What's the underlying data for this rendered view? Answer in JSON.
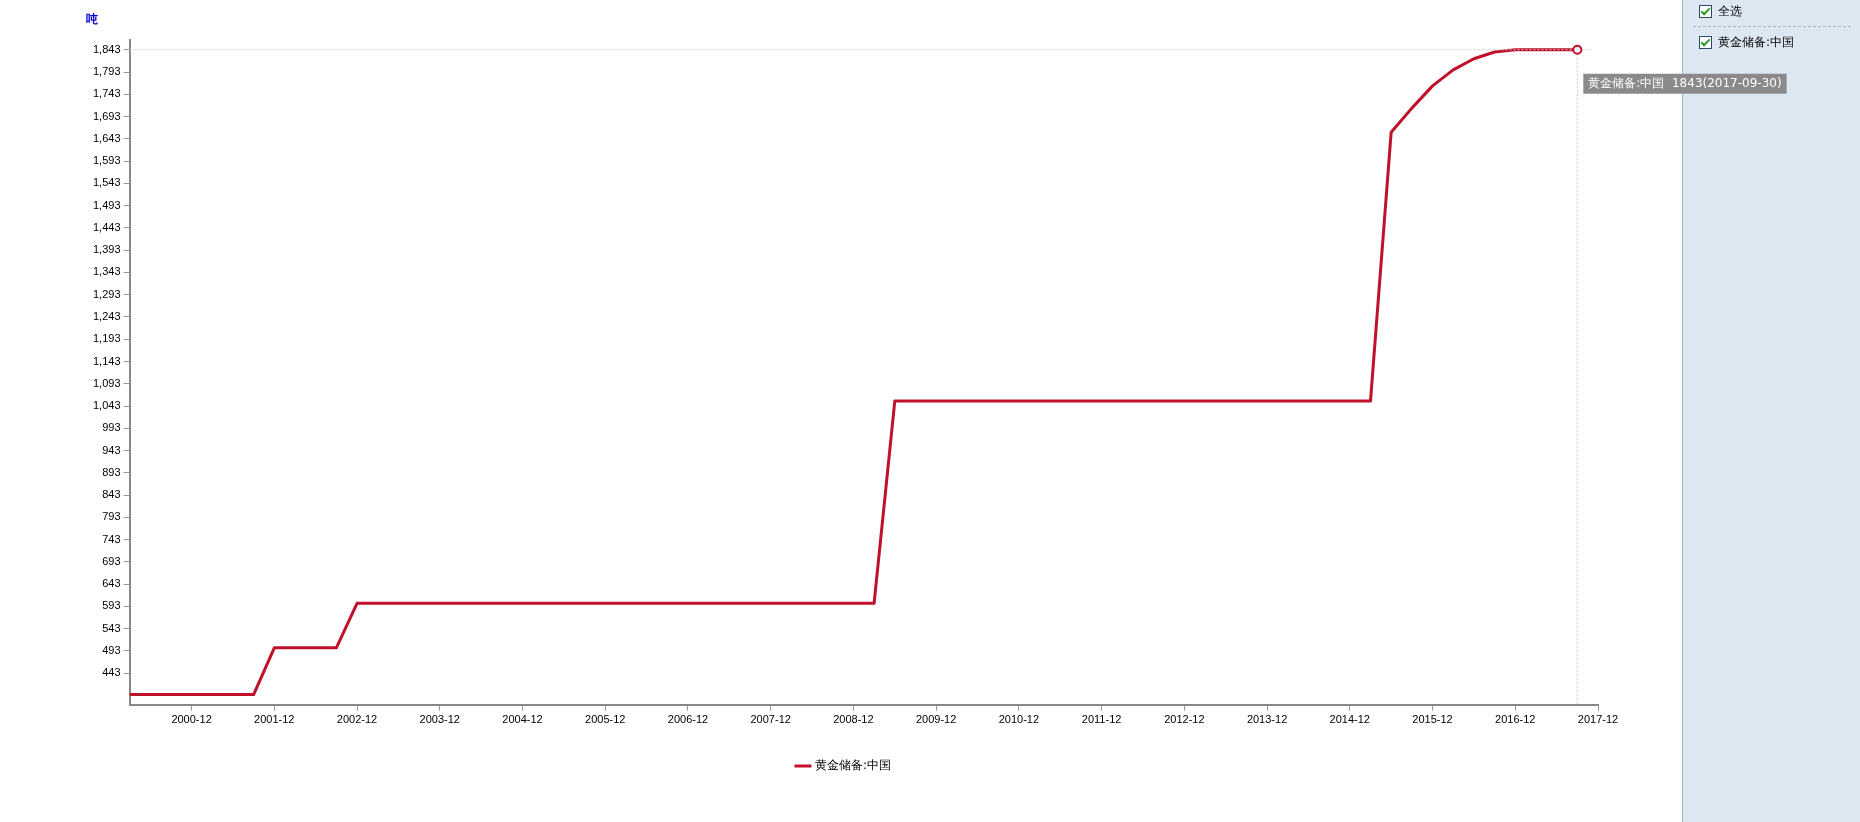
{
  "chart_data": {
    "type": "line",
    "ylabel": "吨",
    "x": [
      "2000-03",
      "2001-09",
      "2001-12",
      "2002-09",
      "2002-12",
      "2009-03",
      "2009-06",
      "2015-03",
      "2015-06",
      "2015-09",
      "2015-12",
      "2016-03",
      "2016-06",
      "2016-09",
      "2016-12",
      "2017-09"
    ],
    "series": [
      {
        "name": "黄金储备:中国",
        "color": "#c0102a",
        "values": [
          395,
          395,
          500,
          500,
          600,
          600,
          1054,
          1054,
          1658,
          1712,
          1762,
          1798,
          1823,
          1838,
          1843,
          1843
        ]
      }
    ],
    "xlim": [
      "2000-03",
      "2017-12"
    ],
    "xticks": [
      "2000-12",
      "2001-12",
      "2002-12",
      "2003-12",
      "2004-12",
      "2005-12",
      "2006-12",
      "2007-12",
      "2008-12",
      "2009-12",
      "2010-12",
      "2011-12",
      "2012-12",
      "2013-12",
      "2014-12",
      "2015-12",
      "2016-12",
      "2017-12"
    ],
    "ylim": [
      372,
      1865
    ],
    "yticks": [
      443,
      493,
      543,
      593,
      643,
      693,
      743,
      793,
      843,
      893,
      943,
      993,
      {
        "value": 1043,
        "label": "1,043"
      },
      {
        "value": 1093,
        "label": "1,093"
      },
      {
        "value": 1143,
        "label": "1,143"
      },
      {
        "value": 1193,
        "label": "1,193"
      },
      {
        "value": 1243,
        "label": "1,243"
      },
      {
        "value": 1293,
        "label": "1,293"
      },
      {
        "value": 1343,
        "label": "1,343"
      },
      {
        "value": 1393,
        "label": "1,393"
      },
      {
        "value": 1443,
        "label": "1,443"
      },
      {
        "value": 1493,
        "label": "1,493"
      },
      {
        "value": 1543,
        "label": "1,543"
      },
      {
        "value": 1593,
        "label": "1,593"
      },
      {
        "value": 1643,
        "label": "1,643"
      },
      {
        "value": 1693,
        "label": "1,693"
      },
      {
        "value": 1743,
        "label": "1,743"
      },
      {
        "value": 1793,
        "label": "1,793"
      },
      {
        "value": 1843,
        "label": "1,843"
      }
    ],
    "legend": "bottom",
    "marker": "none",
    "line_style": "solid",
    "annotations": [
      "全选",
      {
        "text": "黄金储备:中国  1843(2017-09-30)",
        "x": "2017-09",
        "y": 1843
      }
    ]
  }
}
